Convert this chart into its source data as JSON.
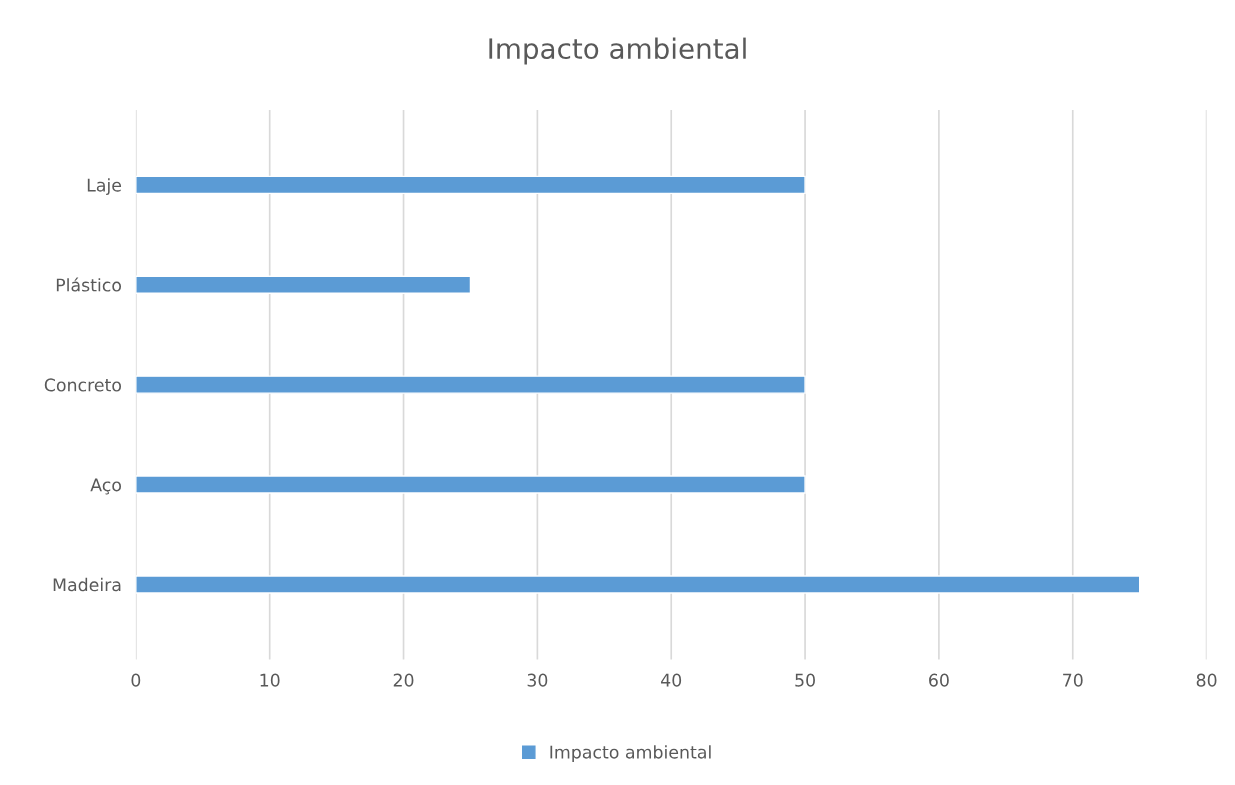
{
  "chart_data": {
    "type": "bar",
    "orientation": "horizontal",
    "title": "Impacto ambiental",
    "categories": [
      "Laje",
      "Plástico",
      "Concreto",
      "Aço",
      "Madeira"
    ],
    "series": [
      {
        "name": "Impacto ambiental",
        "color": "#5b9bd5",
        "values": [
          50,
          25,
          50,
          50,
          75
        ]
      }
    ],
    "xlim": [
      0,
      80
    ],
    "xticks": [
      0,
      10,
      20,
      30,
      40,
      50,
      60,
      70,
      80
    ],
    "grid": "x",
    "legend": "bottom"
  }
}
